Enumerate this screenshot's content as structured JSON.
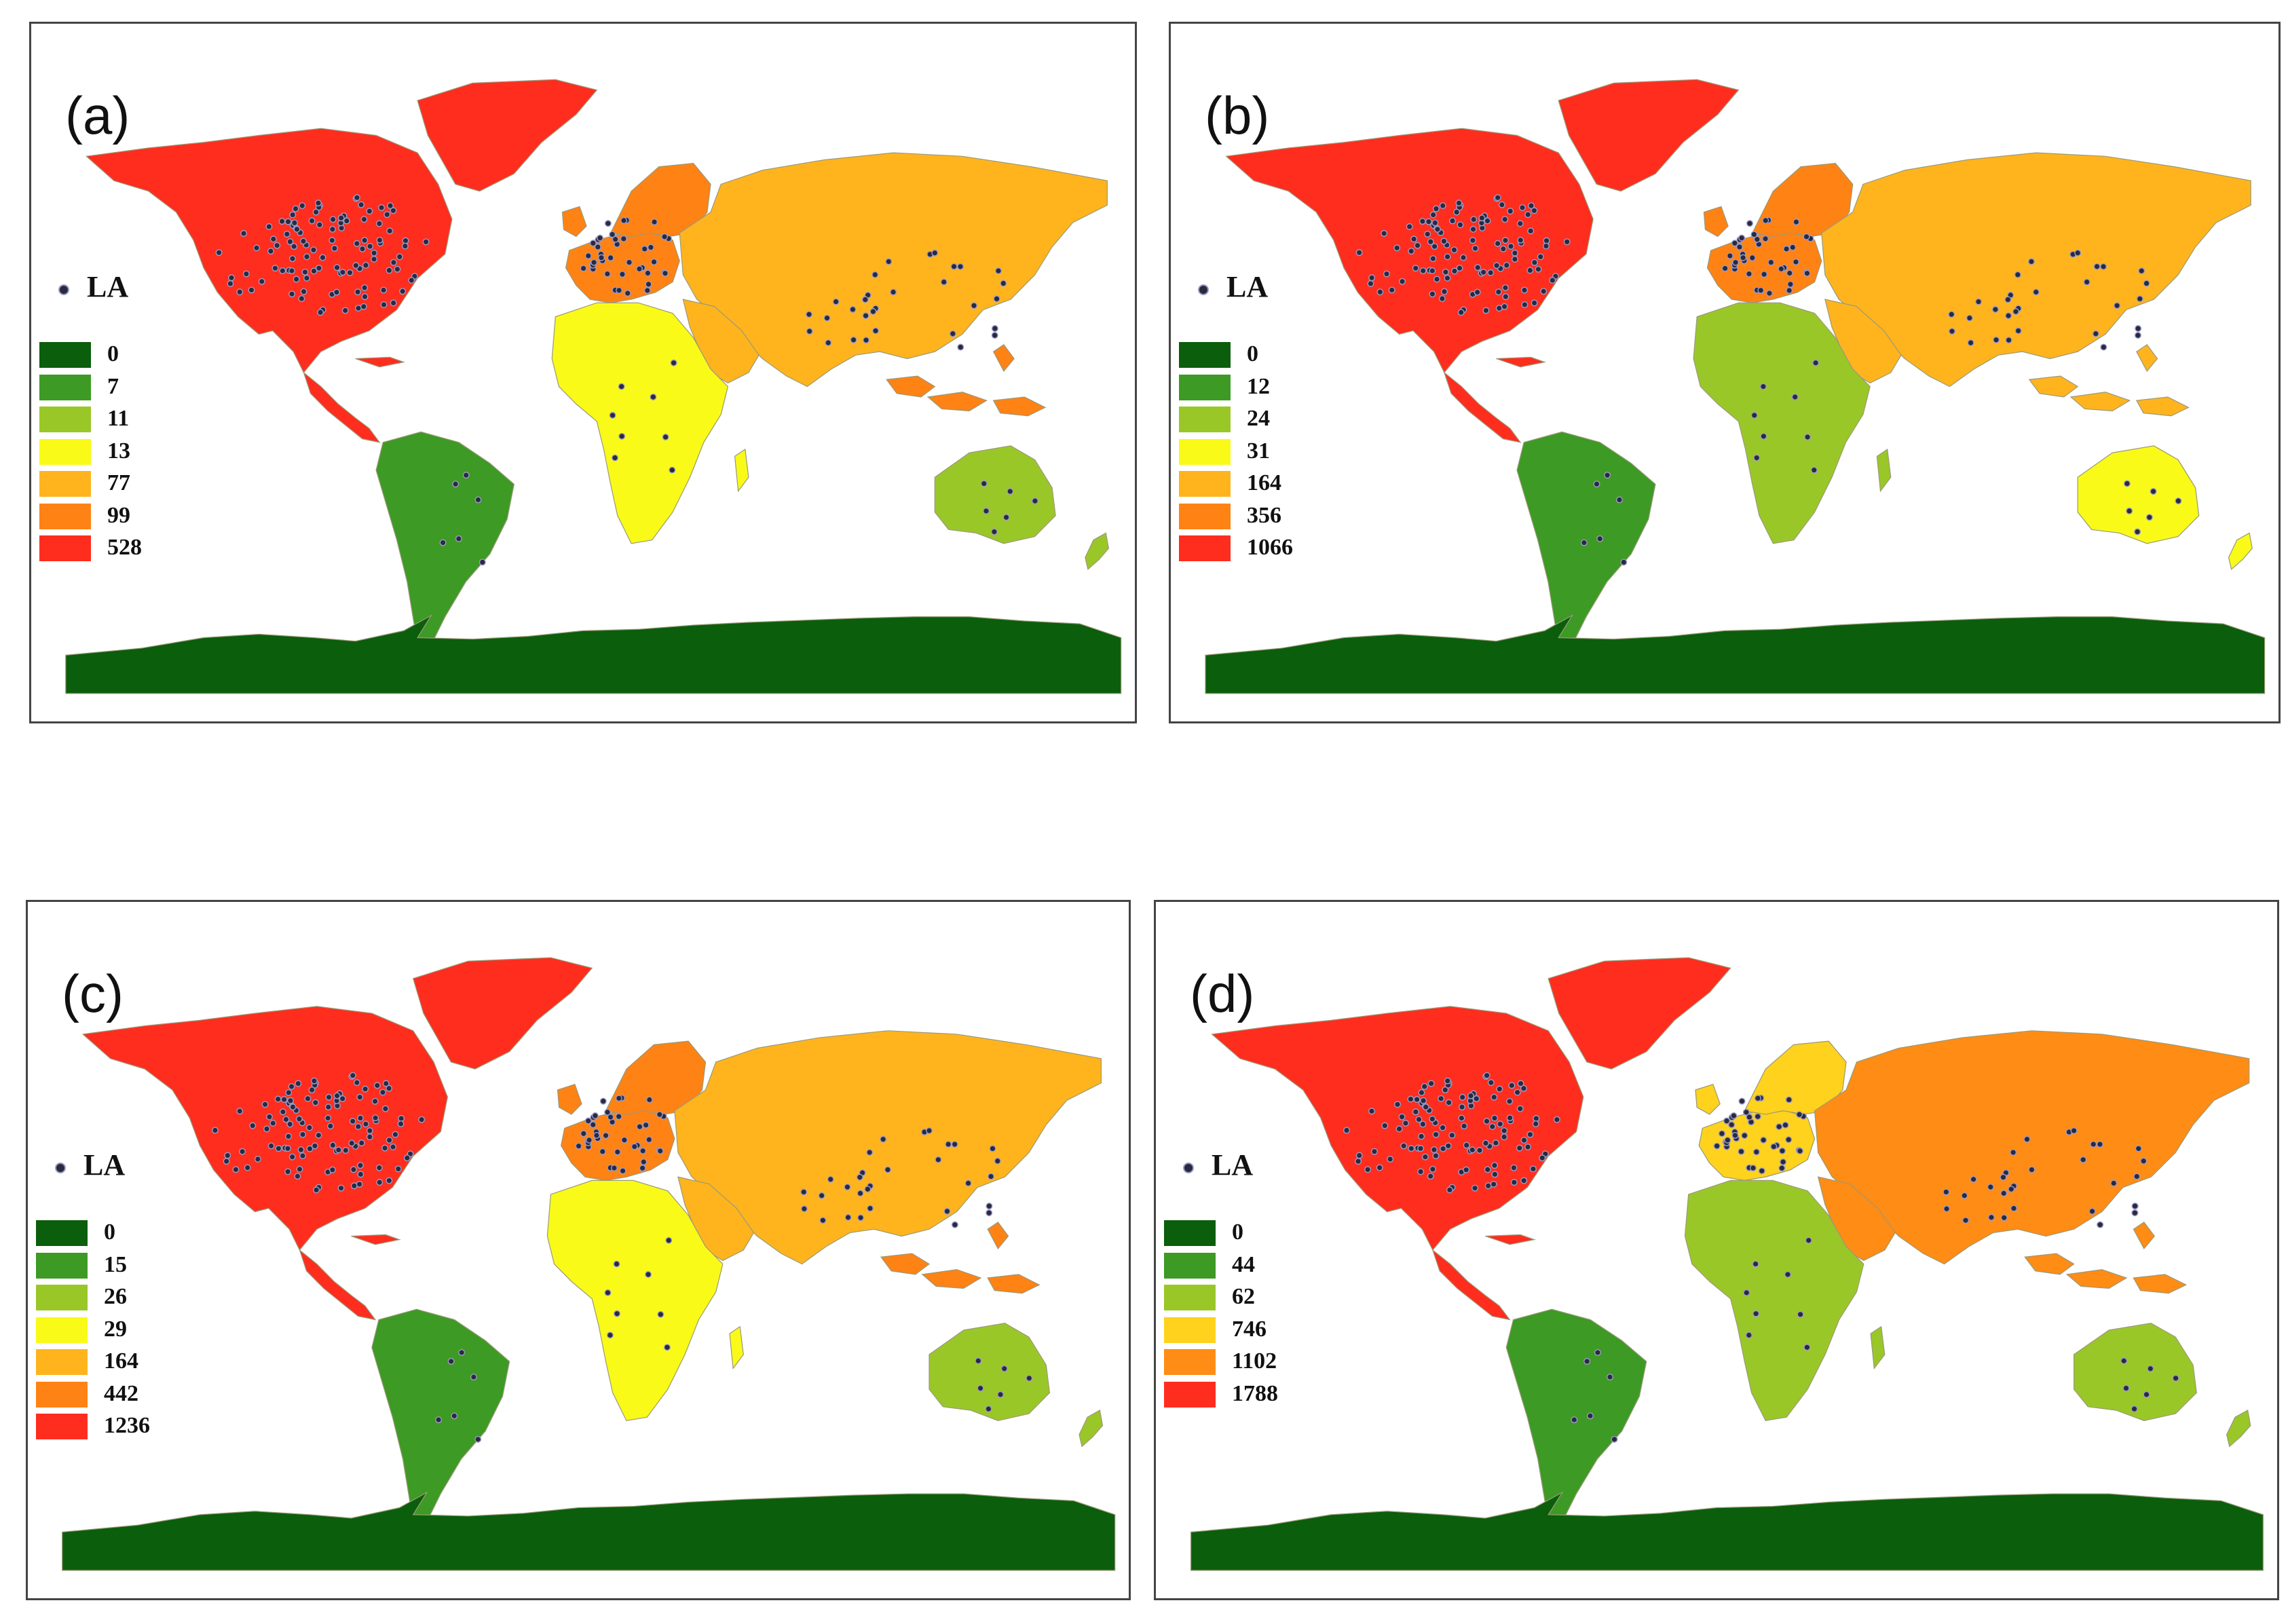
{
  "la_legend_label": "LA",
  "colors": {
    "class_1": "#0b5e0b",
    "class_2": "#3d9a24",
    "class_3": "#9ac728",
    "class_4": "#fafa19",
    "class_5": "#ffb41e",
    "class_6": "#ff8214",
    "class_7": "#ff2d1e",
    "marker_fill": "#2a2a3e",
    "marker_edge": "#9b9bc9",
    "country_border": "#9a9a7a"
  },
  "panels": [
    {
      "label": "(a)",
      "legend": [
        {
          "label": "0",
          "color": "#0b5e0b"
        },
        {
          "label": "7",
          "color": "#3d9a24"
        },
        {
          "label": "11",
          "color": "#9ac728"
        },
        {
          "label": "13",
          "color": "#fafa19"
        },
        {
          "label": "77",
          "color": "#ffb41e"
        },
        {
          "label": "99",
          "color": "#ff8214"
        },
        {
          "label": "528",
          "color": "#ff2d1e"
        }
      ],
      "regions": {
        "north_america": "#ff2d1e",
        "greenland": "#ff2d1e",
        "south_america": "#3d9a24",
        "western_europe": "#ff8214",
        "scandinavia": "#ff8214",
        "eurasia": "#ffb41e",
        "middle_east": "#ffb41e",
        "southeast_asia_islands": "#ff8214",
        "africa": "#fafa19",
        "australia": "#9ac728",
        "new_zealand": "#9ac728",
        "antarctica": "#0b5e0b"
      }
    },
    {
      "label": "(b)",
      "legend": [
        {
          "label": "0",
          "color": "#0b5e0b"
        },
        {
          "label": "12",
          "color": "#3d9a24"
        },
        {
          "label": "24",
          "color": "#9ac728"
        },
        {
          "label": "31",
          "color": "#fafa19"
        },
        {
          "label": "164",
          "color": "#ffb41e"
        },
        {
          "label": "356",
          "color": "#ff8214"
        },
        {
          "label": "1066",
          "color": "#ff2d1e"
        }
      ],
      "regions": {
        "north_america": "#ff2d1e",
        "greenland": "#ff2d1e",
        "south_america": "#3d9a24",
        "western_europe": "#ff8214",
        "scandinavia": "#ff8214",
        "eurasia": "#ffb41e",
        "middle_east": "#ffb41e",
        "southeast_asia_islands": "#ffb41e",
        "africa": "#9ac728",
        "australia": "#fafa19",
        "new_zealand": "#fafa19",
        "antarctica": "#0b5e0b"
      }
    },
    {
      "label": "(c)",
      "legend": [
        {
          "label": "0",
          "color": "#0b5e0b"
        },
        {
          "label": "15",
          "color": "#3d9a24"
        },
        {
          "label": "26",
          "color": "#9ac728"
        },
        {
          "label": "29",
          "color": "#fafa19"
        },
        {
          "label": "164",
          "color": "#ffb41e"
        },
        {
          "label": "442",
          "color": "#ff8214"
        },
        {
          "label": "1236",
          "color": "#ff2d1e"
        }
      ],
      "regions": {
        "north_america": "#ff2d1e",
        "greenland": "#ff2d1e",
        "south_america": "#3d9a24",
        "western_europe": "#ff8214",
        "scandinavia": "#ff8214",
        "eurasia": "#ffb41e",
        "middle_east": "#ffb41e",
        "southeast_asia_islands": "#ff8214",
        "africa": "#fafa19",
        "australia": "#9ac728",
        "new_zealand": "#9ac728",
        "antarctica": "#0b5e0b"
      }
    },
    {
      "label": "(d)",
      "legend": [
        {
          "label": "0",
          "color": "#0b5e0b"
        },
        {
          "label": "44",
          "color": "#3d9a24"
        },
        {
          "label": "62",
          "color": "#9ac728"
        },
        {
          "label": "746",
          "color": "#ffd21e"
        },
        {
          "label": "1102",
          "color": "#ff8c14"
        },
        {
          "label": "1788",
          "color": "#ff2d1e"
        }
      ],
      "regions": {
        "north_america": "#ff2d1e",
        "greenland": "#ff2d1e",
        "south_america": "#3d9a24",
        "western_europe": "#ffd21e",
        "scandinavia": "#ffd21e",
        "eurasia": "#ff8c14",
        "middle_east": "#ff8c14",
        "southeast_asia_islands": "#ff8c14",
        "africa": "#9ac728",
        "australia": "#9ac728",
        "new_zealand": "#9ac728",
        "antarctica": "#0b5e0b"
      }
    }
  ]
}
